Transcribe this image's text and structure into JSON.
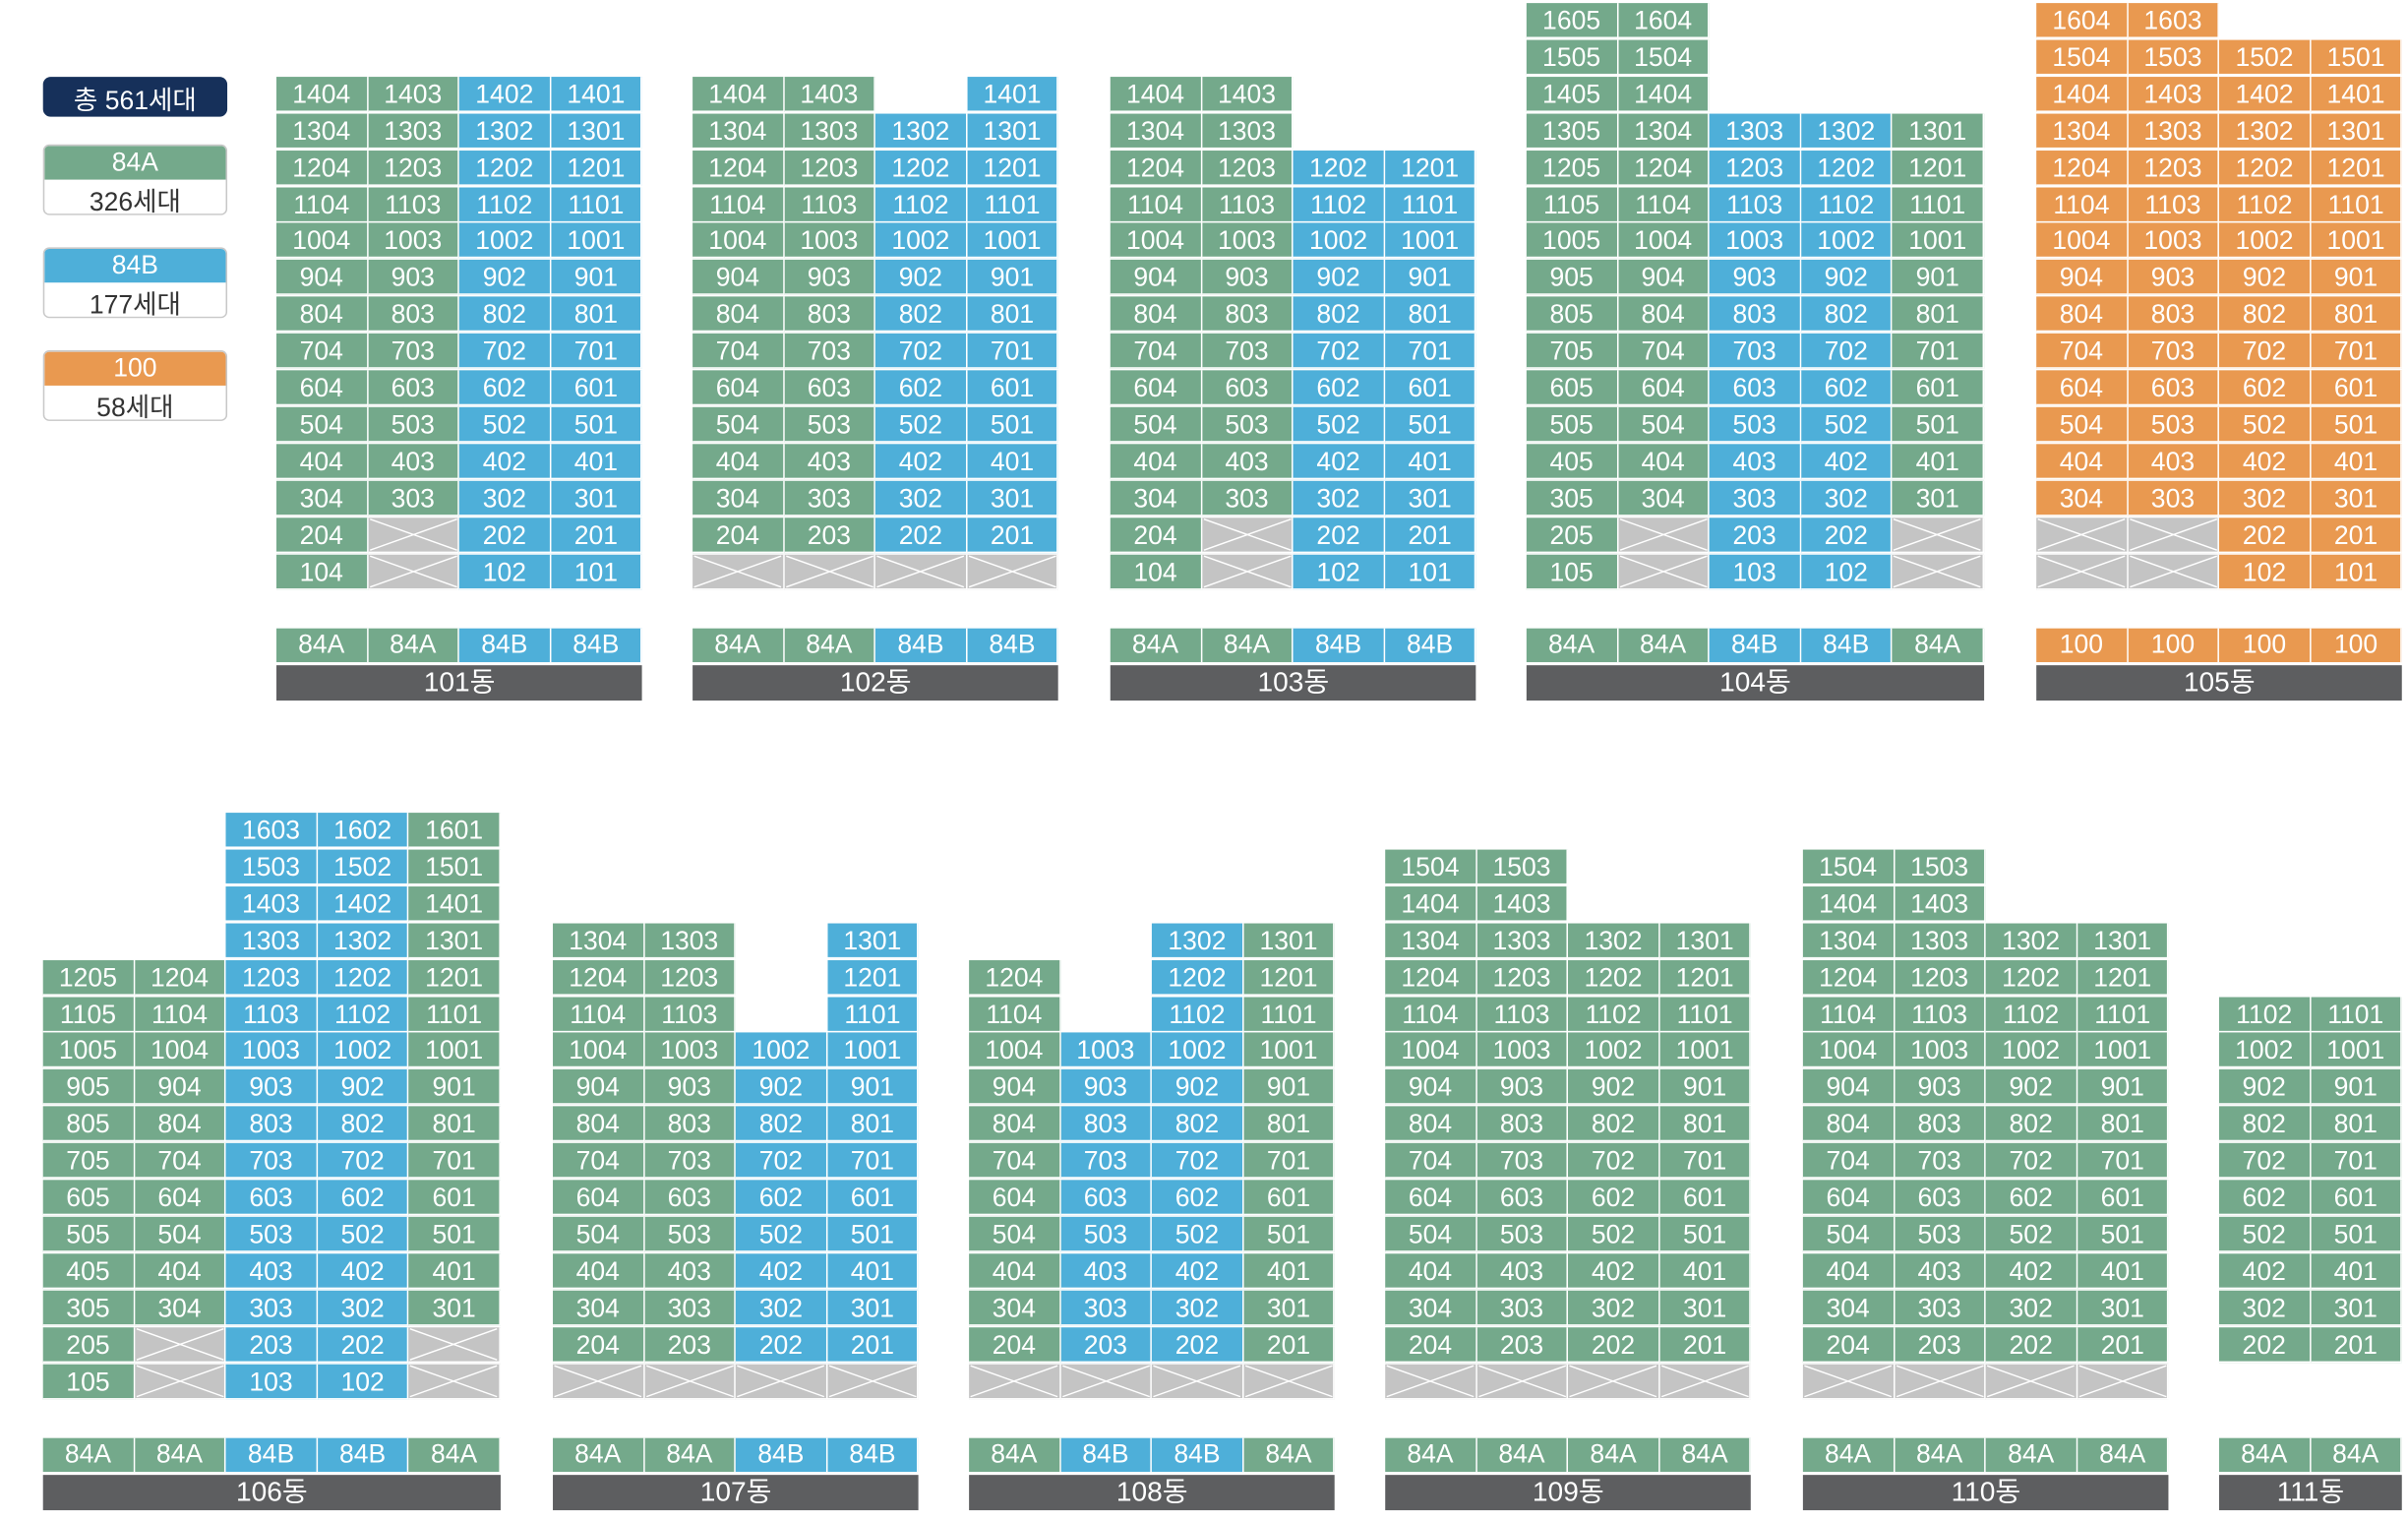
{
  "legend": {
    "total": "총 561세대",
    "items": [
      {
        "type": "84A",
        "count": "326세대",
        "color": "#74a98b"
      },
      {
        "type": "84B",
        "count": "177세대",
        "color": "#4eafd9"
      },
      {
        "type": "100",
        "count": "58세대",
        "color": "#e99950"
      }
    ]
  },
  "colors": {
    "84A": "#74a98b",
    "84B": "#4eafd9",
    "100": "#e99950",
    "empty": "#c4c4c4",
    "building_label": "#5d5e60"
  },
  "buildings": [
    {
      "name": "101동",
      "col_types": [
        "84A",
        "84A",
        "84B",
        "84B"
      ],
      "top_floors": [
        14,
        14,
        14,
        14
      ],
      "min_floor": 1,
      "missing": {
        "1": [
          1
        ],
        "2": [
          1
        ]
      }
    },
    {
      "name": "102동",
      "col_types": [
        "84A",
        "84A",
        "84B",
        "84B"
      ],
      "top_floors": [
        14,
        14,
        13,
        14
      ],
      "min_floor": 1,
      "missing": {
        "1": [
          0,
          1,
          2,
          3
        ]
      }
    },
    {
      "name": "103동",
      "col_types": [
        "84A",
        "84A",
        "84B",
        "84B"
      ],
      "top_floors": [
        14,
        14,
        12,
        12
      ],
      "min_floor": 1,
      "missing": {
        "1": [
          1
        ],
        "2": [
          1
        ]
      }
    },
    {
      "name": "104동",
      "col_types": [
        "84A",
        "84A",
        "84B",
        "84B",
        "84A"
      ],
      "top_floors": [
        16,
        16,
        13,
        13,
        13
      ],
      "min_floor": 1,
      "missing": {
        "1": [
          1,
          4
        ],
        "2": [
          1,
          4
        ]
      }
    },
    {
      "name": "105동",
      "col_types": [
        "100",
        "100",
        "100",
        "100"
      ],
      "top_floors": [
        16,
        16,
        15,
        15
      ],
      "min_floor": 1,
      "missing": {
        "1": [
          0,
          1
        ],
        "2": [
          0,
          1
        ]
      }
    },
    {
      "name": "106동",
      "col_types": [
        "84A",
        "84A",
        "84B",
        "84B",
        "84A"
      ],
      "top_floors": [
        12,
        12,
        16,
        16,
        16
      ],
      "min_floor": 1,
      "missing": {
        "1": [
          1,
          4
        ],
        "2": [
          1,
          4
        ]
      }
    },
    {
      "name": "107동",
      "col_types": [
        "84A",
        "84A",
        "84B",
        "84B"
      ],
      "top_floors": [
        13,
        13,
        10,
        13
      ],
      "min_floor": 1,
      "missing": {
        "1": [
          0,
          1,
          2,
          3
        ]
      }
    },
    {
      "name": "108동",
      "col_types": [
        "84A",
        "84B",
        "84B",
        "84A"
      ],
      "top_floors": [
        12,
        10,
        13,
        13
      ],
      "min_floor": 1,
      "missing": {
        "1": [
          0,
          1,
          2,
          3
        ]
      }
    },
    {
      "name": "109동",
      "col_types": [
        "84A",
        "84A",
        "84A",
        "84A"
      ],
      "top_floors": [
        15,
        15,
        13,
        13
      ],
      "min_floor": 1,
      "missing": {
        "1": [
          0,
          1,
          2,
          3
        ]
      }
    },
    {
      "name": "110동",
      "col_types": [
        "84A",
        "84A",
        "84A",
        "84A"
      ],
      "top_floors": [
        15,
        15,
        13,
        13
      ],
      "min_floor": 1,
      "missing": {
        "1": [
          0,
          1,
          2,
          3
        ]
      }
    },
    {
      "name": "111동",
      "col_types": [
        "84A",
        "84A"
      ],
      "top_floors": [
        11,
        11
      ],
      "min_floor": 2,
      "missing": {}
    }
  ]
}
